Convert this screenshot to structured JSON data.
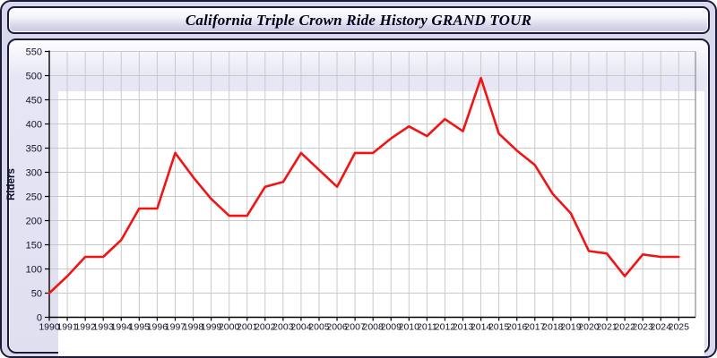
{
  "window": {
    "title": "California Triple Crown Ride History GRAND TOUR"
  },
  "colors": {
    "line": "#f01414",
    "grid": "#c9c9c9",
    "axis": "#000000",
    "plot_right_border": "#8a8a8a",
    "label_text": "#14142c",
    "title_text": "#000018",
    "panel_lavender": "#dfdff0",
    "titlebar_gradient_bottom": "#c7c7e2"
  },
  "chart_data": {
    "type": "line",
    "title": "California Triple Crown Ride History GRAND TOUR",
    "xlabel": "",
    "ylabel": "Riders",
    "ylim": [
      0,
      550
    ],
    "ytick_step": 50,
    "grid": true,
    "legend_position": "none",
    "series_name": "Riders",
    "categories": [
      1990,
      1991,
      1992,
      1993,
      1994,
      1995,
      1996,
      1997,
      1998,
      1999,
      2000,
      2001,
      2002,
      2003,
      2004,
      2005,
      2006,
      2007,
      2008,
      2009,
      2010,
      2011,
      2012,
      2013,
      2014,
      2015,
      2016,
      2017,
      2018,
      2019,
      2020,
      2021,
      2022,
      2023,
      2024,
      2025
    ],
    "values": [
      50,
      85,
      125,
      125,
      160,
      225,
      225,
      340,
      290,
      245,
      210,
      210,
      270,
      280,
      340,
      305,
      270,
      340,
      340,
      370,
      395,
      375,
      410,
      385,
      495,
      380,
      345,
      315,
      255,
      215,
      137,
      132,
      85,
      130,
      125,
      125
    ]
  }
}
